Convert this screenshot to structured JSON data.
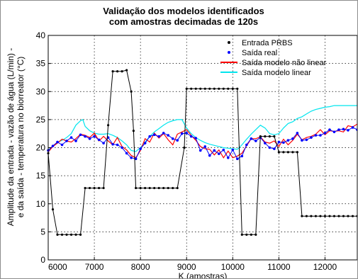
{
  "chart_data": {
    "type": "line",
    "title": [
      "Validação dos modelos identificados",
      "com amostras decimadas de 120s"
    ],
    "xlabel": "K (amostras)",
    "ylabel": [
      "Amplitude da entrada - vazão de água (L/min) -",
      "e da saída - temperatura no biorreator (°C)"
    ],
    "xlim": [
      6000,
      12700
    ],
    "ylim": [
      0,
      40
    ],
    "xticks": [
      6000,
      7000,
      8000,
      9000,
      10000,
      11000,
      12000
    ],
    "yticks": [
      0,
      5,
      10,
      15,
      20,
      25,
      30,
      35,
      40
    ],
    "grid": true,
    "legend_position": "top-right",
    "series": [
      {
        "name": "Entrada PRBS",
        "color": "#000000",
        "marker": "dot",
        "points": [
          [
            6000,
            19
          ],
          [
            6100,
            9
          ],
          [
            6200,
            4.5
          ],
          [
            6300,
            4.5
          ],
          [
            6400,
            4.5
          ],
          [
            6500,
            4.5
          ],
          [
            6600,
            4.5
          ],
          [
            6700,
            4.5
          ],
          [
            6800,
            12.8
          ],
          [
            6900,
            12.8
          ],
          [
            7000,
            12.8
          ],
          [
            7100,
            12.8
          ],
          [
            7200,
            12.8
          ],
          [
            7300,
            24
          ],
          [
            7400,
            33.6
          ],
          [
            7500,
            33.6
          ],
          [
            7600,
            33.6
          ],
          [
            7700,
            33.8
          ],
          [
            7800,
            30
          ],
          [
            7850,
            23
          ],
          [
            7900,
            12.8
          ],
          [
            8000,
            12.8
          ],
          [
            8100,
            12.8
          ],
          [
            8200,
            12.8
          ],
          [
            8300,
            12.8
          ],
          [
            8400,
            12.8
          ],
          [
            8500,
            12.8
          ],
          [
            8600,
            12.8
          ],
          [
            8700,
            12.8
          ],
          [
            8800,
            12.8
          ],
          [
            8950,
            20
          ],
          [
            9000,
            30.5
          ],
          [
            9100,
            30.5
          ],
          [
            9200,
            30.5
          ],
          [
            9300,
            30.5
          ],
          [
            9400,
            30.5
          ],
          [
            9500,
            30.5
          ],
          [
            9600,
            30.5
          ],
          [
            9700,
            30.5
          ],
          [
            9800,
            30.5
          ],
          [
            9900,
            30.5
          ],
          [
            10000,
            30.5
          ],
          [
            10100,
            30.5
          ],
          [
            10200,
            4.5
          ],
          [
            10300,
            4.5
          ],
          [
            10400,
            4.5
          ],
          [
            10500,
            4.5
          ],
          [
            10600,
            22
          ],
          [
            10700,
            22
          ],
          [
            10800,
            22
          ],
          [
            10900,
            22
          ],
          [
            11000,
            19.2
          ],
          [
            11100,
            19.2
          ],
          [
            11200,
            19.2
          ],
          [
            11300,
            19.2
          ],
          [
            11400,
            19.2
          ],
          [
            11500,
            7.8
          ],
          [
            11600,
            7.8
          ],
          [
            11700,
            7.8
          ],
          [
            11800,
            7.8
          ],
          [
            11900,
            7.8
          ],
          [
            12000,
            7.8
          ],
          [
            12100,
            7.8
          ],
          [
            12200,
            7.8
          ],
          [
            12300,
            7.8
          ],
          [
            12400,
            7.8
          ],
          [
            12500,
            7.8
          ],
          [
            12600,
            7.8
          ],
          [
            12700,
            7.8
          ]
        ]
      },
      {
        "name": "Saída real",
        "color": "#0000ff",
        "marker": "dot",
        "points": [
          [
            6000,
            19.5
          ],
          [
            6100,
            20.3
          ],
          [
            6200,
            21
          ],
          [
            6300,
            20.5
          ],
          [
            6400,
            21.2
          ],
          [
            6500,
            21.8
          ],
          [
            6600,
            21.2
          ],
          [
            6700,
            22.3
          ],
          [
            6800,
            22
          ],
          [
            6900,
            21.6
          ],
          [
            7000,
            22
          ],
          [
            7100,
            21.4
          ],
          [
            7200,
            20.8
          ],
          [
            7300,
            21.8
          ],
          [
            7400,
            20.6
          ],
          [
            7500,
            20.5
          ],
          [
            7600,
            20
          ],
          [
            7700,
            19
          ],
          [
            7800,
            18.2
          ],
          [
            7900,
            18
          ],
          [
            8000,
            19.8
          ],
          [
            8100,
            20.8
          ],
          [
            8200,
            22
          ],
          [
            8300,
            22.3
          ],
          [
            8400,
            22
          ],
          [
            8500,
            22.6
          ],
          [
            8600,
            22.2
          ],
          [
            8700,
            21.6
          ],
          [
            8800,
            21.3
          ],
          [
            8900,
            22.5
          ],
          [
            9000,
            22.6
          ],
          [
            9100,
            22
          ],
          [
            9200,
            21.7
          ],
          [
            9300,
            19.5
          ],
          [
            9400,
            20.2
          ],
          [
            9500,
            18.6
          ],
          [
            9600,
            19.5
          ],
          [
            9700,
            18.9
          ],
          [
            9800,
            19.6
          ],
          [
            9900,
            18.2
          ],
          [
            10000,
            19.6
          ],
          [
            10100,
            18
          ],
          [
            10200,
            18.5
          ],
          [
            10300,
            20.5
          ],
          [
            10400,
            21.6
          ],
          [
            10500,
            21.2
          ],
          [
            10600,
            21.8
          ],
          [
            10700,
            20.8
          ],
          [
            10800,
            20
          ],
          [
            10900,
            19.8
          ],
          [
            11000,
            21
          ],
          [
            11100,
            20.9
          ],
          [
            11200,
            21.3
          ],
          [
            11300,
            21.6
          ],
          [
            11400,
            22.6
          ],
          [
            11500,
            21.3
          ],
          [
            11600,
            21.4
          ],
          [
            11700,
            21.8
          ],
          [
            11800,
            22.2
          ],
          [
            11900,
            22.2
          ],
          [
            12000,
            22.6
          ],
          [
            12100,
            23.2
          ],
          [
            12200,
            22.8
          ],
          [
            12300,
            23.2
          ],
          [
            12400,
            23.3
          ],
          [
            12500,
            23.1
          ],
          [
            12600,
            23.6
          ],
          [
            12700,
            23.2
          ]
        ]
      },
      {
        "name": "Saída modelo não linear",
        "color": "#ff0000",
        "marker": "none",
        "points": [
          [
            6000,
            19.2
          ],
          [
            6100,
            20.2
          ],
          [
            6200,
            20.8
          ],
          [
            6300,
            21.5
          ],
          [
            6400,
            21.2
          ],
          [
            6500,
            21
          ],
          [
            6600,
            21.6
          ],
          [
            6700,
            22.4
          ],
          [
            6800,
            22.2
          ],
          [
            6900,
            21.8
          ],
          [
            7000,
            22.6
          ],
          [
            7100,
            21.2
          ],
          [
            7200,
            22
          ],
          [
            7300,
            21.2
          ],
          [
            7400,
            20.5
          ],
          [
            7500,
            21.8
          ],
          [
            7600,
            20.2
          ],
          [
            7700,
            19.6
          ],
          [
            7800,
            18.6
          ],
          [
            7900,
            18.2
          ],
          [
            8000,
            19.5
          ],
          [
            8100,
            21.6
          ],
          [
            8200,
            21
          ],
          [
            8300,
            22.6
          ],
          [
            8400,
            21.7
          ],
          [
            8500,
            22.5
          ],
          [
            8600,
            21.4
          ],
          [
            8700,
            20.5
          ],
          [
            8800,
            22.4
          ],
          [
            8900,
            22.8
          ],
          [
            9000,
            23.2
          ],
          [
            9100,
            22.2
          ],
          [
            9200,
            21.3
          ],
          [
            9300,
            20.2
          ],
          [
            9400,
            19.8
          ],
          [
            9500,
            19.7
          ],
          [
            9600,
            18.7
          ],
          [
            9700,
            19.6
          ],
          [
            9800,
            18.2
          ],
          [
            9900,
            19.4
          ],
          [
            10000,
            18.2
          ],
          [
            10100,
            18.5
          ],
          [
            10200,
            19
          ],
          [
            10300,
            20.3
          ],
          [
            10400,
            21.6
          ],
          [
            10500,
            21.6
          ],
          [
            10600,
            21.9
          ],
          [
            10700,
            21
          ],
          [
            10800,
            20.8
          ],
          [
            10900,
            21.2
          ],
          [
            11000,
            20.2
          ],
          [
            11100,
            21.5
          ],
          [
            11200,
            20.5
          ],
          [
            11300,
            21.3
          ],
          [
            11400,
            22.4
          ],
          [
            11500,
            21.4
          ],
          [
            11600,
            21.8
          ],
          [
            11700,
            22
          ],
          [
            11800,
            22.4
          ],
          [
            11900,
            23.2
          ],
          [
            12000,
            22.3
          ],
          [
            12100,
            23
          ],
          [
            12200,
            22.9
          ],
          [
            12300,
            23
          ],
          [
            12400,
            22.8
          ],
          [
            12500,
            23.9
          ],
          [
            12600,
            23.7
          ],
          [
            12700,
            24.2
          ]
        ]
      },
      {
        "name": "Saída modelo linear",
        "color": "#00e5ee",
        "marker": "none",
        "points": [
          [
            6000,
            19.6
          ],
          [
            6100,
            20.2
          ],
          [
            6200,
            21
          ],
          [
            6300,
            21.3
          ],
          [
            6400,
            21.8
          ],
          [
            6500,
            22.5
          ],
          [
            6600,
            24
          ],
          [
            6700,
            24.8
          ],
          [
            6750,
            25
          ],
          [
            6800,
            23.8
          ],
          [
            6900,
            23
          ],
          [
            7000,
            22.6
          ],
          [
            7100,
            22.4
          ],
          [
            7200,
            22.4
          ],
          [
            7300,
            22.5
          ],
          [
            7400,
            22.2
          ],
          [
            7500,
            21.8
          ],
          [
            7600,
            21.2
          ],
          [
            7700,
            20.5
          ],
          [
            7800,
            19.5
          ],
          [
            7900,
            19.3
          ],
          [
            8000,
            20
          ],
          [
            8100,
            21
          ],
          [
            8200,
            22
          ],
          [
            8300,
            22.8
          ],
          [
            8400,
            23.4
          ],
          [
            8500,
            24
          ],
          [
            8600,
            24.5
          ],
          [
            8700,
            24.8
          ],
          [
            8800,
            25
          ],
          [
            8900,
            25
          ],
          [
            9000,
            23.5
          ],
          [
            9100,
            22.5
          ],
          [
            9200,
            21.8
          ],
          [
            9300,
            21.3
          ],
          [
            9400,
            20.9
          ],
          [
            9500,
            20.6
          ],
          [
            9600,
            20.4
          ],
          [
            9700,
            20.2
          ],
          [
            9800,
            20
          ],
          [
            9900,
            19.9
          ],
          [
            10000,
            19.8
          ],
          [
            10100,
            19.7
          ],
          [
            10200,
            20.5
          ],
          [
            10300,
            21.5
          ],
          [
            10400,
            22.4
          ],
          [
            10500,
            23.2
          ],
          [
            10600,
            24
          ],
          [
            10700,
            23.5
          ],
          [
            10800,
            22.5
          ],
          [
            10900,
            22.3
          ],
          [
            11000,
            22.5
          ],
          [
            11100,
            23.5
          ],
          [
            11200,
            24.3
          ],
          [
            11300,
            24.6
          ],
          [
            11400,
            25.2
          ],
          [
            11500,
            25.5
          ],
          [
            11600,
            26
          ],
          [
            11700,
            26.5
          ],
          [
            11800,
            26.8
          ],
          [
            11900,
            27
          ],
          [
            12000,
            27.2
          ],
          [
            12100,
            27.3
          ],
          [
            12200,
            27.5
          ],
          [
            12300,
            27.5
          ],
          [
            12400,
            27.5
          ],
          [
            12500,
            27.5
          ],
          [
            12600,
            27.5
          ],
          [
            12700,
            27.5
          ]
        ]
      }
    ]
  }
}
